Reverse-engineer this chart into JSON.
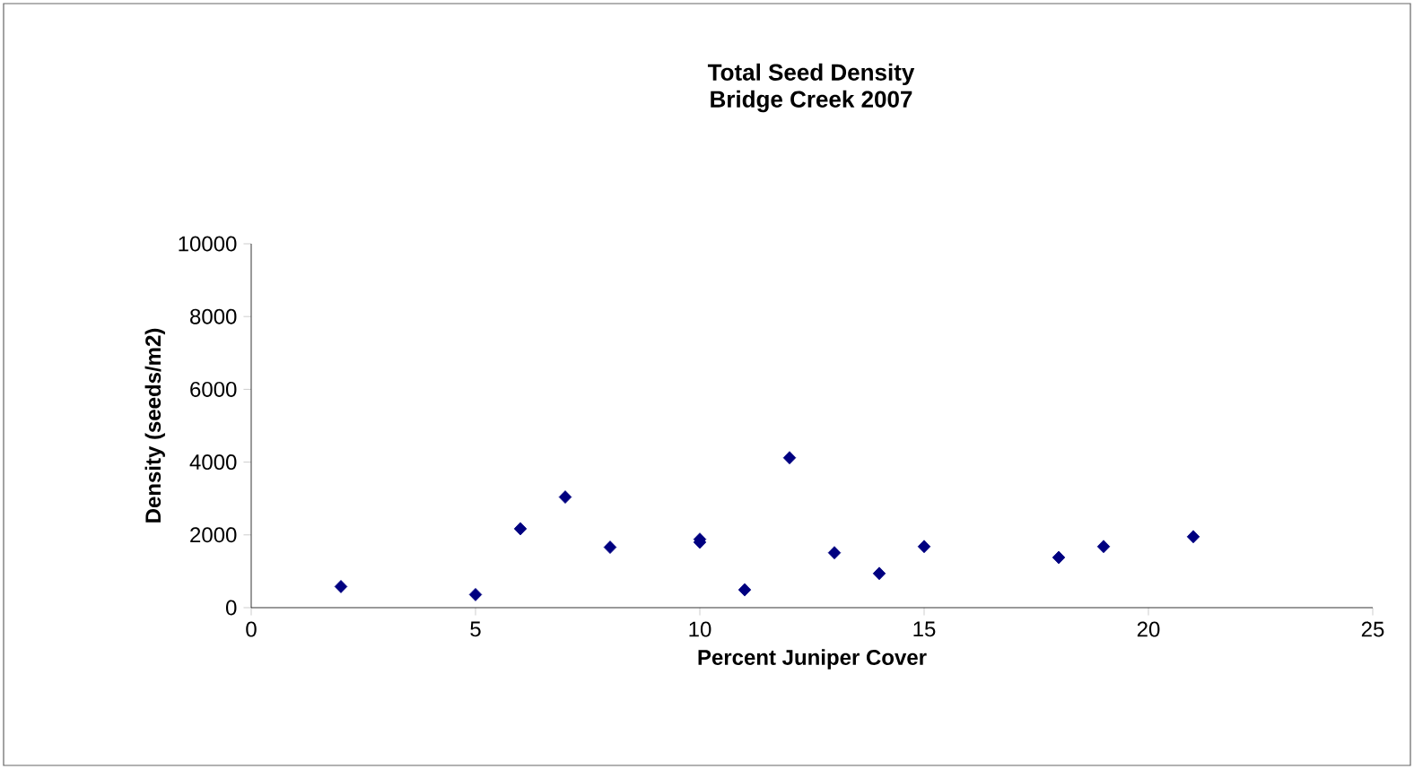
{
  "chart_data": {
    "type": "scatter",
    "title": "Total Seed Density",
    "subtitle": "Bridge Creek 2007",
    "xlabel": "Percent Juniper Cover",
    "ylabel": "Density (seeds/m2)",
    "series": [
      {
        "color": "#000080",
        "x": [
          2,
          5,
          6,
          7,
          8,
          10,
          10,
          11,
          12,
          13,
          14,
          15,
          18,
          19,
          21
        ],
        "values": [
          580,
          360,
          2170,
          3040,
          1660,
          1800,
          1880,
          490,
          4120,
          1510,
          940,
          1680,
          1380,
          1680,
          1950
        ]
      }
    ],
    "xlim": [
      0,
      25
    ],
    "ylim": [
      0,
      10000
    ],
    "xticks": [
      0,
      5,
      10,
      15,
      20,
      25
    ],
    "yticks": [
      0,
      2000,
      4000,
      6000,
      8000,
      10000
    ],
    "marker": "diamond",
    "grid": false
  }
}
